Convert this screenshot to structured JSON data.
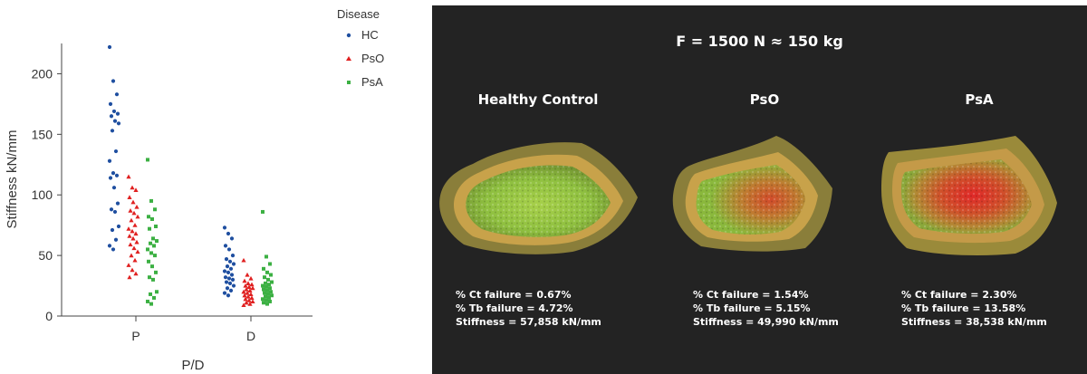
{
  "chart_data": {
    "type": "scatter",
    "xlabel": "P/D",
    "ylabel": "Stiffness kN/mm",
    "categories": [
      "P",
      "D"
    ],
    "ylim": [
      0,
      225
    ],
    "yticks": [
      "0",
      "50",
      "100",
      "150",
      "200"
    ],
    "legend_title": "Disease",
    "legend_position": "top-right",
    "series": [
      {
        "name": "HC",
        "color": "#1f4fa0",
        "marker": "circle",
        "points": [
          {
            "cat": "P",
            "values": [
              222,
              194,
              183,
              175,
              169,
              167,
              165,
              161,
              159,
              153,
              136,
              128,
              118,
              116,
              114,
              106,
              93,
              88,
              86,
              74,
              71,
              63,
              58,
              55
            ]
          },
          {
            "cat": "D",
            "values": [
              73,
              68,
              64,
              58,
              55,
              50,
              47,
              45,
              43,
              41,
              39,
              37,
              36,
              34,
              32,
              31,
              30,
              28,
              27,
              25,
              23,
              21,
              19,
              17
            ]
          }
        ]
      },
      {
        "name": "PsO",
        "color": "#e02020",
        "marker": "triangle",
        "points": [
          {
            "cat": "P",
            "values": [
              115,
              106,
              104,
              98,
              94,
              90,
              87,
              85,
              82,
              79,
              75,
              72,
              70,
              68,
              66,
              64,
              61,
              59,
              56,
              53,
              50,
              46,
              42,
              38,
              35,
              32
            ]
          },
          {
            "cat": "D",
            "values": [
              46,
              34,
              31,
              29,
              27,
              26,
              25,
              24,
              23,
              22,
              21,
              20,
              19,
              18,
              17,
              16,
              15,
              14,
              13,
              12,
              11,
              10,
              9
            ]
          }
        ]
      },
      {
        "name": "PsA",
        "color": "#3cb043",
        "marker": "square",
        "points": [
          {
            "cat": "P",
            "values": [
              129,
              95,
              88,
              82,
              80,
              74,
              72,
              64,
              62,
              60,
              58,
              55,
              52,
              50,
              45,
              41,
              36,
              32,
              30,
              20,
              18,
              15,
              12,
              10
            ]
          },
          {
            "cat": "D",
            "values": [
              86,
              49,
              43,
              39,
              36,
              34,
              32,
              30,
              28,
              27,
              26,
              25,
              24,
              23,
              22,
              21,
              20,
              19,
              18,
              17,
              16,
              15,
              14,
              13,
              12,
              11,
              10
            ]
          }
        ]
      }
    ]
  },
  "panel": {
    "force_title": "F = 1500 N ≈ 150 kg",
    "groups": [
      {
        "title": "Healthy Control",
        "ct": "% Ct failure = 0.67%",
        "tb": "% Tb failure = 4.72%",
        "stiffness": "Stiffness = 57,858 kN/mm"
      },
      {
        "title": "PsO",
        "ct": "% Ct failure = 1.54%",
        "tb": "% Tb failure = 5.15%",
        "stiffness": "Stiffness = 49,990 kN/mm"
      },
      {
        "title": "PsA",
        "ct": "% Ct failure = 2.30%",
        "tb": "% Tb failure = 13.58%",
        "stiffness": "Stiffness = 38,538 kN/mm"
      }
    ]
  }
}
